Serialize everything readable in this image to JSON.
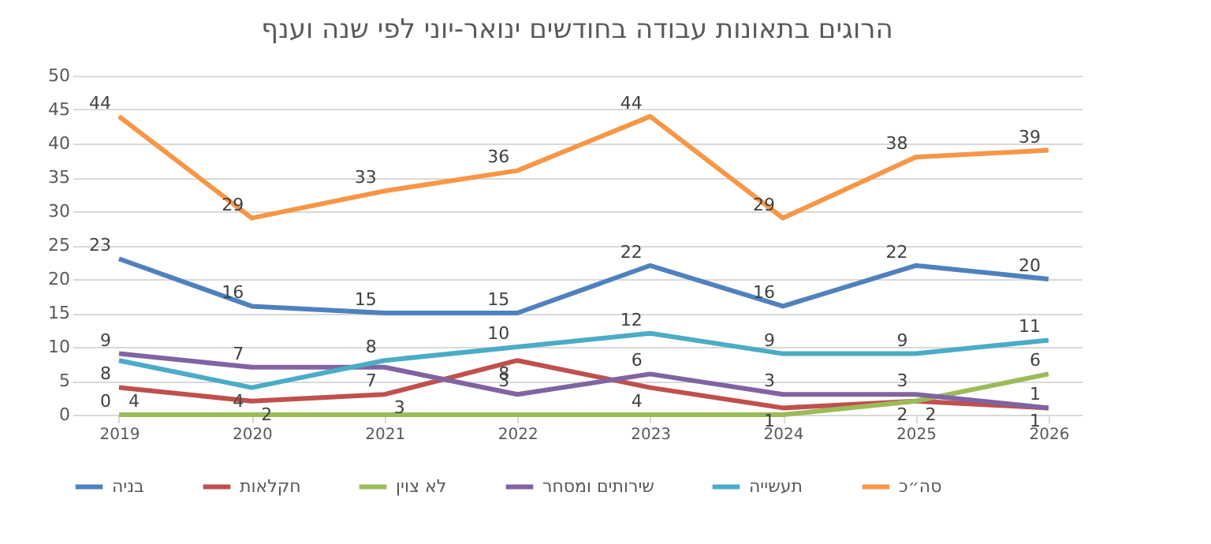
{
  "chart_data": {
    "type": "line",
    "title": "הרוגים בתאונות עבודה בחודשים ינואר-יוני לפי שנה וענף",
    "categories": [
      "2019",
      "2020",
      "2021",
      "2022",
      "2023",
      "2024",
      "2025",
      "2026"
    ],
    "series": [
      {
        "name": "בניה",
        "color": "#4f81bd",
        "values": [
          23,
          16,
          15,
          15,
          22,
          16,
          22,
          20
        ],
        "value_labels": [
          "23",
          "16",
          "15",
          "15",
          "22",
          "16",
          "22",
          "20"
        ]
      },
      {
        "name": "חקלאות",
        "color": "#c0504d",
        "values": [
          4,
          2,
          3,
          8,
          4,
          1,
          2,
          1
        ],
        "value_labels": [
          "4",
          "2",
          "3",
          "8",
          "4",
          "1",
          "2",
          "1"
        ]
      },
      {
        "name": "לא צוין",
        "color": "#9bbb59",
        "values": [
          0,
          0,
          0,
          0,
          0,
          0,
          2,
          6
        ],
        "value_labels": [
          "0",
          null,
          null,
          null,
          null,
          null,
          "2",
          "6"
        ]
      },
      {
        "name": "שירותים ומסחר",
        "color": "#8064a2",
        "values": [
          9,
          7,
          7,
          3,
          6,
          3,
          3,
          1
        ],
        "value_labels": [
          "9",
          "7",
          "7",
          "3",
          "6",
          "3",
          "3",
          "1"
        ]
      },
      {
        "name": "תעשייה",
        "color": "#4bacc6",
        "values": [
          8,
          4,
          8,
          10,
          12,
          9,
          9,
          11
        ],
        "value_labels": [
          "8",
          "4",
          "8",
          "10",
          "12",
          "9",
          "9",
          "11"
        ]
      },
      {
        "name": "סה״כ",
        "color": "#f79646",
        "values": [
          44,
          29,
          33,
          36,
          44,
          29,
          38,
          39
        ],
        "value_labels": [
          "44",
          "29",
          "33",
          "36",
          "44",
          "29",
          "38",
          "39"
        ]
      }
    ],
    "ylim": [
      0,
      50
    ],
    "yticks": [
      0,
      5,
      10,
      15,
      20,
      25,
      30,
      35,
      40,
      45,
      50
    ],
    "grid": "y",
    "legend": "bottom",
    "line_style": "solid",
    "marker": "none"
  }
}
